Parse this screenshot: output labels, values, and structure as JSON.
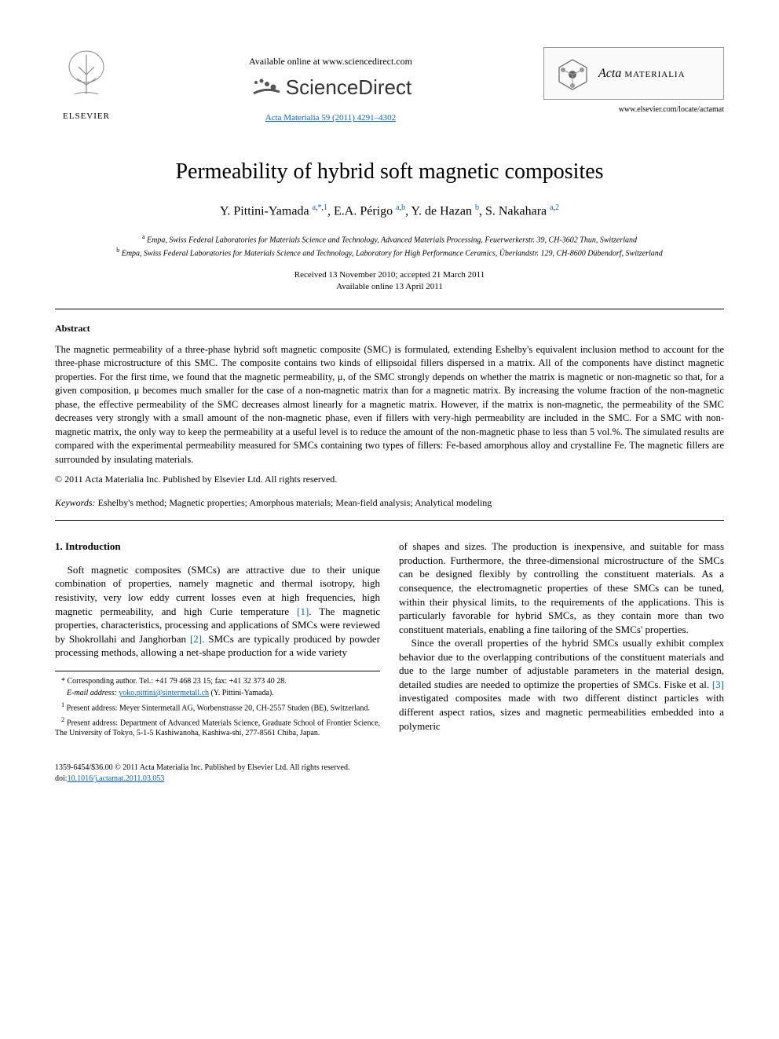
{
  "header": {
    "elsevier_label": "ELSEVIER",
    "available_online": "Available online at www.sciencedirect.com",
    "scidirect_label": "ScienceDirect",
    "journal_ref": "Acta Materialia 59 (2011) 4291–4302",
    "journal_name_italic": "Acta",
    "journal_name_caps": "MATERIALIA",
    "journal_url": "www.elsevier.com/locate/actamat"
  },
  "article": {
    "title": "Permeability of hybrid soft magnetic composites",
    "authors_html": "Y. Pittini-Yamada <sup><a href='#'>a</a>,<a href='#'>*</a>,<a href='#'>1</a></sup>, E.A. Périgo <sup><a href='#'>a</a>,<a href='#'>b</a></sup>, Y. de Hazan <sup><a href='#'>b</a></sup>, S. Nakahara <sup><a href='#'>a</a>,<a href='#'>2</a></sup>",
    "affiliations": [
      "<sup>a</sup> Empa, Swiss Federal Laboratories for Materials Science and Technology, Advanced Materials Processing, Feuerwerkerstr. 39, CH-3602 Thun, Switzerland",
      "<sup>b</sup> Empa, Swiss Federal Laboratories for Materials Science and Technology, Laboratory for High Performance Ceramics, Überlandstr. 129, CH-8600 Dübendorf, Switzerland"
    ],
    "received": "Received 13 November 2010; accepted 21 March 2011",
    "available": "Available online 13 April 2011"
  },
  "abstract": {
    "heading": "Abstract",
    "text": "The magnetic permeability of a three-phase hybrid soft magnetic composite (SMC) is formulated, extending Eshelby's equivalent inclusion method to account for the three-phase microstructure of this SMC. The composite contains two kinds of ellipsoidal fillers dispersed in a matrix. All of the components have distinct magnetic properties. For the first time, we found that the magnetic permeability, μ, of the SMC strongly depends on whether the matrix is magnetic or non-magnetic so that, for a given composition, μ becomes much smaller for the case of a non-magnetic matrix than for a magnetic matrix. By increasing the volume fraction of the non-magnetic phase, the effective permeability of the SMC decreases almost linearly for a magnetic matrix. However, if the matrix is non-magnetic, the permeability of the SMC decreases very strongly with a small amount of the non-magnetic phase, even if fillers with very-high permeability are included in the SMC. For a SMC with non-magnetic matrix, the only way to keep the permeability at a useful level is to reduce the amount of the non-magnetic phase to less than 5 vol.%. The simulated results are compared with the experimental permeability measured for SMCs containing two types of fillers: Fe-based amorphous alloy and crystalline Fe. The magnetic fillers are surrounded by insulating materials.",
    "copyright": "© 2011 Acta Materialia Inc. Published by Elsevier Ltd. All rights reserved.",
    "keywords_label": "Keywords:",
    "keywords": "Eshelby's method; Magnetic properties; Amorphous materials; Mean-field analysis; Analytical modeling"
  },
  "body": {
    "section_heading": "1. Introduction",
    "para1": "Soft magnetic composites (SMCs) are attractive due to their unique combination of properties, namely magnetic and thermal isotropy, high resistivity, very low eddy current losses even at high frequencies, high magnetic permeability, and high Curie temperature <a class='ref-link' href='#'>[1]</a>. The magnetic properties, characteristics, processing and applications of SMCs were reviewed by Shokrollahi and Janghorban <a class='ref-link' href='#'>[2]</a>. SMCs are typically produced by powder processing methods, allowing a net-shape production for a wide variety",
    "para2": "of shapes and sizes. The production is inexpensive, and suitable for mass production. Furthermore, the three-dimensional microstructure of the SMCs can be designed flexibly by controlling the constituent materials. As a consequence, the electromagnetic properties of these SMCs can be tuned, within their physical limits, to the requirements of the applications. This is particularly favorable for hybrid SMCs, as they contain more than two constituent materials, enabling a fine tailoring of the SMCs' properties.",
    "para3": "Since the overall properties of the hybrid SMCs usually exhibit complex behavior due to the overlapping contributions of the constituent materials and due to the large number of adjustable parameters in the material design, detailed studies are needed to optimize the properties of SMCs. Fiske et al. <a class='ref-link' href='#'>[3]</a> investigated composites made with two different distinct particles with different aspect ratios, sizes and magnetic permeabilities embedded into a polymeric"
  },
  "footnotes": {
    "corr": "* Corresponding author. Tel.: +41 79 468 23 15; fax: +41 32 373 40 28.",
    "email_label": "E-mail address:",
    "email": "yoko.pittini@sintermetall.ch",
    "email_name": "(Y. Pittini-Yamada).",
    "fn1": "Present address: Meyer Sintermetall AG, Worbenstrasse 20, CH-2557 Studen (BE), Switzerland.",
    "fn2": "Present address: Department of Advanced Materials Science, Graduate School of Frontier Science, The University of Tokyo, 5-1-5 Kashiwanoha, Kashiwa-shi, 277-8561 Chiba, Japan."
  },
  "footer": {
    "line1": "1359-6454/$36.00 © 2011 Acta Materialia Inc. Published by Elsevier Ltd. All rights reserved.",
    "doi_label": "doi:",
    "doi": "10.1016/j.actamat.2011.03.053"
  },
  "colors": {
    "link": "#0066cc",
    "text": "#000000",
    "bg": "#ffffff",
    "box_border": "#999999",
    "box_bg": "#fafafa"
  }
}
